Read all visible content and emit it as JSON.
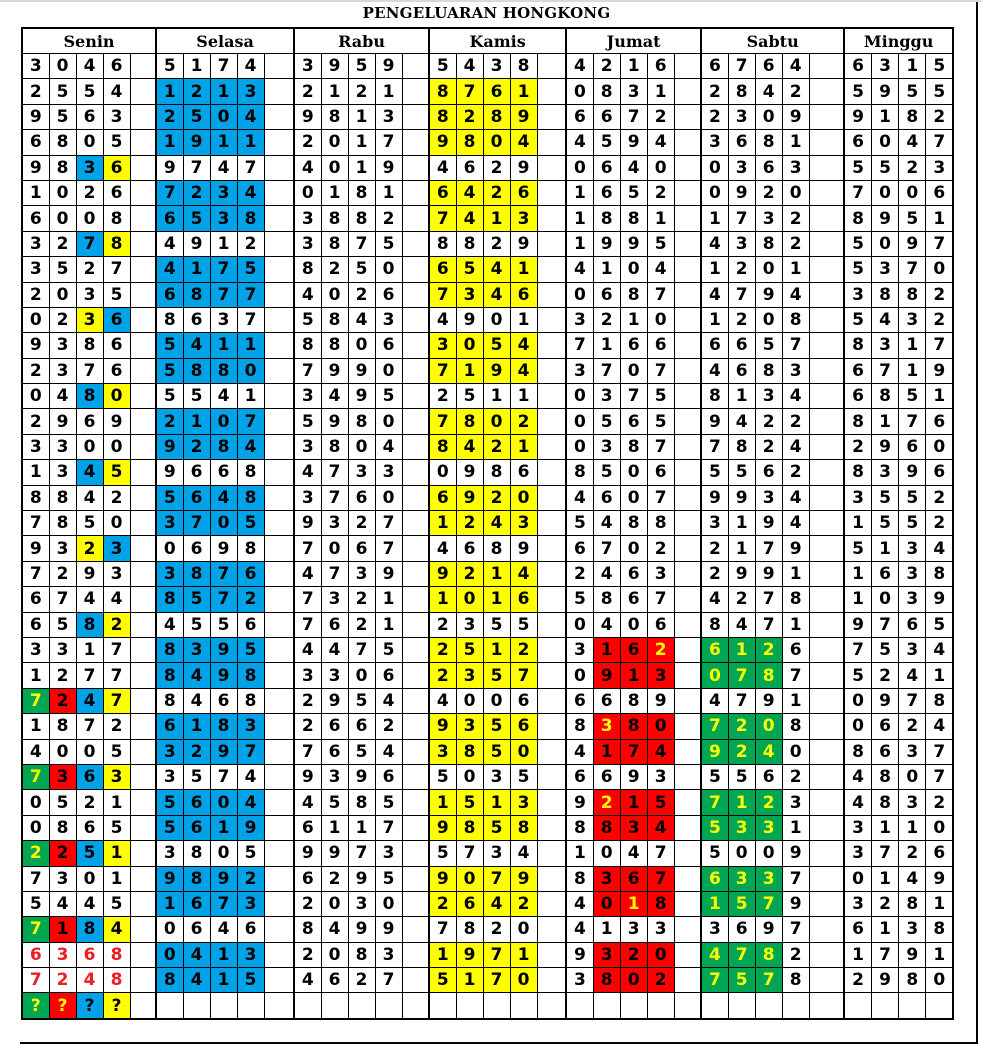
{
  "title": "PENGELUARAN HONGKONG",
  "days": [
    "Senin",
    "Selasa",
    "Rabu",
    "Kamis",
    "Jumat",
    "Sabtu",
    "Minggu"
  ],
  "colors": {
    "b": "#00a2e8",
    "y": "#ffff00",
    "g": "#00a651",
    "r": "#ff0000",
    "Y": "#ffff00",
    "R": "#ee1c24"
  },
  "rows": [
    [
      "3046",
      "5174",
      "3959",
      "5438",
      "4216",
      "6764",
      "6315"
    ],
    [
      "2554",
      "1213",
      "2121",
      "8761",
      "0831",
      "2842",
      "5955"
    ],
    [
      "9563",
      "2504",
      "9813",
      "8289",
      "6672",
      "2309",
      "9182"
    ],
    [
      "6805",
      "1911",
      "2017",
      "9804",
      "4594",
      "3681",
      "6047"
    ],
    [
      "9836",
      "9747",
      "4019",
      "4629",
      "0640",
      "0363",
      "5523"
    ],
    [
      "1026",
      "7234",
      "0181",
      "6426",
      "1652",
      "0920",
      "7006"
    ],
    [
      "6008",
      "6538",
      "3882",
      "7413",
      "1881",
      "1732",
      "8951"
    ],
    [
      "3278",
      "4912",
      "3875",
      "8829",
      "1995",
      "4382",
      "5097"
    ],
    [
      "3527",
      "4175",
      "8250",
      "6541",
      "4104",
      "1201",
      "5370"
    ],
    [
      "2035",
      "6877",
      "4026",
      "7346",
      "0687",
      "4794",
      "3882"
    ],
    [
      "0236",
      "8637",
      "5843",
      "4901",
      "3210",
      "1208",
      "5432"
    ],
    [
      "9386",
      "5411",
      "8806",
      "3054",
      "7166",
      "6657",
      "8317"
    ],
    [
      "2376",
      "5880",
      "7990",
      "7194",
      "3707",
      "4683",
      "6719"
    ],
    [
      "0480",
      "5541",
      "3495",
      "2511",
      "0375",
      "8134",
      "6851"
    ],
    [
      "2969",
      "2107",
      "5980",
      "7802",
      "0565",
      "9422",
      "8176"
    ],
    [
      "3300",
      "9284",
      "3804",
      "8421",
      "0387",
      "7824",
      "2960"
    ],
    [
      "1345",
      "9668",
      "4733",
      "0986",
      "8506",
      "5562",
      "8396"
    ],
    [
      "8842",
      "5648",
      "3760",
      "6920",
      "4607",
      "9934",
      "3552"
    ],
    [
      "7850",
      "3705",
      "9327",
      "1243",
      "5488",
      "3194",
      "1552"
    ],
    [
      "9323",
      "0698",
      "7067",
      "4689",
      "6702",
      "2179",
      "5134"
    ],
    [
      "7293",
      "3876",
      "4739",
      "9214",
      "2463",
      "2991",
      "1638"
    ],
    [
      "6744",
      "8572",
      "7321",
      "1016",
      "5867",
      "4278",
      "1039"
    ],
    [
      "6582",
      "4556",
      "7621",
      "2355",
      "0406",
      "8471",
      "9765"
    ],
    [
      "3317",
      "8395",
      "4475",
      "2512",
      "3162",
      "6126",
      "7534"
    ],
    [
      "1277",
      "8498",
      "3306",
      "2357",
      "0913",
      "0787",
      "5241"
    ],
    [
      "7247",
      "8468",
      "2954",
      "4006",
      "6689",
      "4791",
      "0978"
    ],
    [
      "1872",
      "6183",
      "2662",
      "9356",
      "8380",
      "7208",
      "0624"
    ],
    [
      "4005",
      "3297",
      "7654",
      "3850",
      "4174",
      "9240",
      "8637"
    ],
    [
      "7363",
      "3574",
      "9396",
      "5035",
      "6693",
      "5562",
      "4807"
    ],
    [
      "0521",
      "5604",
      "4585",
      "1513",
      "9215",
      "7123",
      "4832"
    ],
    [
      "0865",
      "5619",
      "6117",
      "9858",
      "8834",
      "5331",
      "3110"
    ],
    [
      "2251",
      "3805",
      "9973",
      "5734",
      "1047",
      "5009",
      "3726"
    ],
    [
      "7301",
      "9892",
      "6295",
      "9079",
      "8367",
      "6337",
      "0149"
    ],
    [
      "5445",
      "1673",
      "2030",
      "2642",
      "4018",
      "1579",
      "3281"
    ],
    [
      "7184",
      "0646",
      "8499",
      "7820",
      "4133",
      "3697",
      "6138"
    ],
    [
      "6368",
      "0413",
      "2083",
      "1971",
      "9320",
      "4782",
      "1791"
    ],
    [
      "7248",
      "8415",
      "4627",
      "5170",
      "3802",
      "7578",
      "2980"
    ],
    [
      "????",
      "",
      "",
      "",
      "",
      "",
      ""
    ]
  ],
  "highlight_rows_selasa_kamis": [
    2,
    3,
    4,
    6,
    7,
    9,
    10,
    12,
    13,
    15,
    16,
    18,
    19,
    21,
    22,
    24,
    25,
    27,
    28,
    30,
    31,
    33,
    34,
    36,
    37
  ],
  "highlight_rows_jumat_sabtu": [
    24,
    25,
    27,
    28,
    30,
    31,
    33,
    34,
    36,
    37
  ],
  "highlights": [
    {
      "row": 5,
      "day": 0,
      "bg": "..by"
    },
    {
      "row": 8,
      "day": 0,
      "bg": "..by"
    },
    {
      "row": 11,
      "day": 0,
      "bg": "..yb"
    },
    {
      "row": 14,
      "day": 0,
      "bg": "..by"
    },
    {
      "row": 17,
      "day": 0,
      "bg": "..by"
    },
    {
      "row": 20,
      "day": 0,
      "bg": "..yb"
    },
    {
      "row": 23,
      "day": 0,
      "bg": "..by"
    },
    {
      "row": 26,
      "day": 0,
      "bg": "grby",
      "fg": "Y..."
    },
    {
      "row": 29,
      "day": 0,
      "bg": "grby",
      "fg": "Y..."
    },
    {
      "row": 32,
      "day": 0,
      "bg": "grby",
      "fg": "Y..."
    },
    {
      "row": 35,
      "day": 0,
      "bg": "grby",
      "fg": "Y..."
    },
    {
      "row": 36,
      "day": 0,
      "fg": "RRRR"
    },
    {
      "row": 37,
      "day": 0,
      "fg": "RRRR"
    },
    {
      "row": 38,
      "day": 0,
      "bg": "grby",
      "fg": "YY.."
    },
    {
      "row": 24,
      "day": 4,
      "fg": "...Y"
    },
    {
      "row": 27,
      "day": 4,
      "fg": ".Y.."
    },
    {
      "row": 30,
      "day": 4,
      "fg": ".Y.."
    },
    {
      "row": 34,
      "day": 4,
      "fg": "..Y."
    }
  ]
}
